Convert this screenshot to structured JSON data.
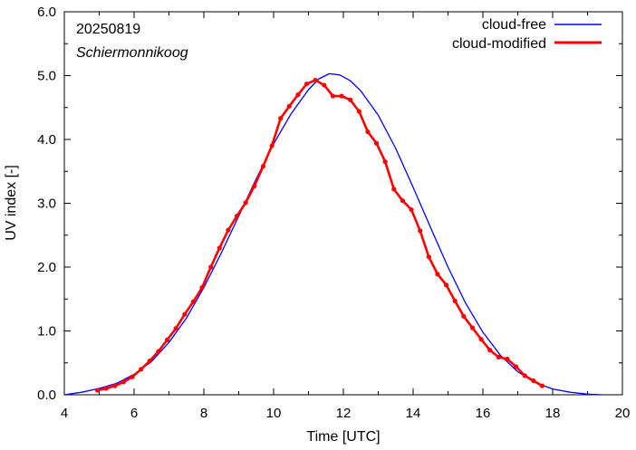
{
  "chart_data": {
    "type": "line",
    "annotations": {
      "date": "20250819",
      "location": "Schiermonnikoog"
    },
    "xlabel": "Time  [UTC]",
    "ylabel": "UV index  [-]",
    "xlim": [
      4,
      20
    ],
    "ylim": [
      0,
      6
    ],
    "x_ticks": [
      4,
      6,
      8,
      10,
      12,
      14,
      16,
      18,
      20
    ],
    "y_ticks": [
      "0.0",
      "1.0",
      "2.0",
      "3.0",
      "4.0",
      "5.0",
      "6.0"
    ],
    "legend_position": "top-right",
    "grid": false,
    "series": [
      {
        "name": "cloud-free",
        "color": "#0000ff",
        "markers": false,
        "x": [
          4.0,
          4.5,
          5.0,
          5.5,
          6.0,
          6.5,
          7.0,
          7.5,
          8.0,
          8.5,
          9.0,
          9.5,
          10.0,
          10.5,
          11.0,
          11.3,
          11.6,
          11.9,
          12.2,
          12.5,
          13.0,
          13.5,
          14.0,
          14.5,
          15.0,
          15.5,
          16.0,
          16.5,
          17.0,
          17.5,
          18.0,
          18.5,
          19.0,
          19.4
        ],
        "y": [
          0.0,
          0.04,
          0.1,
          0.18,
          0.32,
          0.52,
          0.82,
          1.2,
          1.68,
          2.22,
          2.8,
          3.38,
          3.93,
          4.4,
          4.78,
          4.95,
          5.03,
          5.01,
          4.92,
          4.76,
          4.38,
          3.86,
          3.25,
          2.62,
          2.0,
          1.44,
          0.98,
          0.62,
          0.36,
          0.19,
          0.09,
          0.04,
          0.01,
          0.0
        ]
      },
      {
        "name": "cloud-modified",
        "color": "#ff0000",
        "markers": true,
        "x": [
          4.95,
          5.2,
          5.45,
          5.7,
          5.95,
          6.2,
          6.45,
          6.7,
          6.95,
          7.2,
          7.45,
          7.7,
          7.95,
          8.2,
          8.45,
          8.7,
          8.95,
          9.2,
          9.45,
          9.7,
          9.95,
          10.2,
          10.45,
          10.7,
          10.95,
          11.2,
          11.45,
          11.7,
          11.95,
          12.2,
          12.45,
          12.7,
          12.95,
          13.2,
          13.45,
          13.7,
          13.95,
          14.2,
          14.45,
          14.7,
          14.95,
          15.2,
          15.45,
          15.7,
          15.95,
          16.2,
          16.45,
          16.7,
          16.95,
          17.2,
          17.45,
          17.7
        ],
        "y": [
          0.07,
          0.1,
          0.14,
          0.2,
          0.28,
          0.4,
          0.53,
          0.68,
          0.86,
          1.04,
          1.26,
          1.46,
          1.68,
          2.0,
          2.3,
          2.58,
          2.8,
          3.01,
          3.27,
          3.58,
          3.9,
          4.33,
          4.52,
          4.7,
          4.87,
          4.93,
          4.85,
          4.68,
          4.68,
          4.62,
          4.44,
          4.12,
          3.94,
          3.65,
          3.22,
          3.04,
          2.9,
          2.57,
          2.16,
          1.89,
          1.72,
          1.47,
          1.23,
          1.05,
          0.87,
          0.7,
          0.59,
          0.56,
          0.44,
          0.3,
          0.22,
          0.14
        ]
      }
    ]
  }
}
